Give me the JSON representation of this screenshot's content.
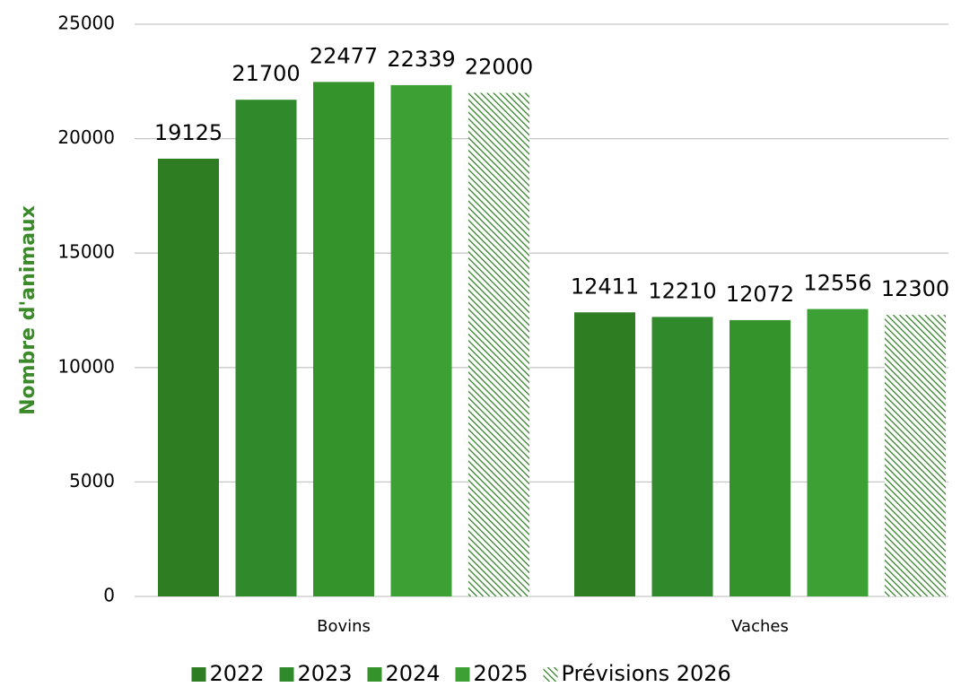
{
  "chart_data": {
    "type": "bar",
    "y_label": "Nombre d'animaux",
    "categories": [
      "Bovins",
      "Vaches"
    ],
    "series": [
      {
        "name": "2022",
        "color": "#2e7d23",
        "values": [
          19125,
          12411
        ]
      },
      {
        "name": "2023",
        "color": "#30892a",
        "values": [
          21700,
          12210
        ]
      },
      {
        "name": "2024",
        "color": "#35932b",
        "values": [
          22477,
          12072
        ]
      },
      {
        "name": "2025",
        "color": "#3da034",
        "values": [
          22339,
          12556
        ]
      },
      {
        "name": "Prévisions 2026",
        "color": "#2e7d23",
        "hatch": true,
        "values": [
          22000,
          12300
        ]
      }
    ],
    "ylim": [
      0,
      25000
    ],
    "yticks": [
      0,
      5000,
      10000,
      15000,
      20000,
      25000
    ],
    "grid": true,
    "legend": "bottom"
  }
}
